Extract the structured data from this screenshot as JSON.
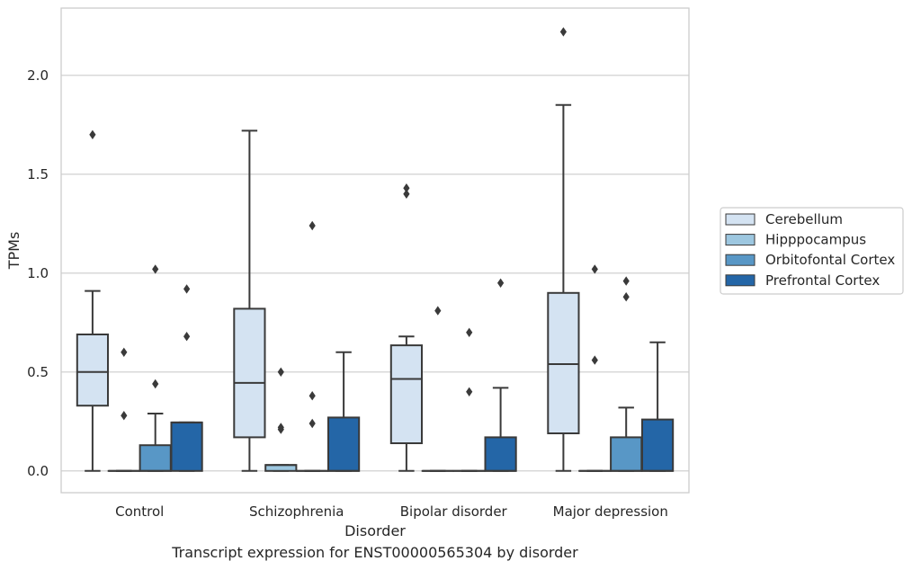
{
  "chart_data": {
    "type": "box",
    "title": "",
    "caption": "Transcript expression for ENST00000565304 by disorder",
    "xlabel": "Disorder",
    "ylabel": "TPMs",
    "ylim": [
      -0.11,
      2.34
    ],
    "yticks": [
      "0.0",
      "0.5",
      "1.0",
      "1.5",
      "2.0"
    ],
    "ytick_values": [
      0.0,
      0.5,
      1.0,
      1.5,
      2.0
    ],
    "grid": "horizontal",
    "legend_position": "right",
    "categories": [
      "Control",
      "Schizophrenia",
      "Bipolar disorder",
      "Major depression"
    ],
    "series": [
      {
        "name": "Cerebellum",
        "color": "#d4e3f2",
        "boxes": [
          {
            "min": 0.0,
            "q1": 0.33,
            "median": 0.5,
            "q3": 0.69,
            "max": 0.91,
            "outliers": [
              1.7
            ]
          },
          {
            "min": 0.0,
            "q1": 0.17,
            "median": 0.445,
            "q3": 0.82,
            "max": 1.72,
            "outliers": []
          },
          {
            "min": 0.0,
            "q1": 0.14,
            "median": 0.465,
            "q3": 0.635,
            "max": 0.68,
            "outliers": [
              1.4,
              1.43
            ]
          },
          {
            "min": 0.0,
            "q1": 0.19,
            "median": 0.54,
            "q3": 0.9,
            "max": 1.85,
            "outliers": [
              2.22
            ]
          }
        ]
      },
      {
        "name": "Hipppocampus",
        "color": "#9dc7e0",
        "boxes": [
          {
            "min": 0.0,
            "q1": 0.0,
            "median": 0.0,
            "q3": 0.0,
            "max": 0.0,
            "outliers": [
              0.28,
              0.6
            ]
          },
          {
            "min": 0.0,
            "q1": 0.0,
            "median": 0.03,
            "q3": 0.03,
            "max": 0.03,
            "outliers": [
              0.21,
              0.22,
              0.5
            ]
          },
          {
            "min": 0.0,
            "q1": 0.0,
            "median": 0.0,
            "q3": 0.0,
            "max": 0.0,
            "outliers": [
              0.81
            ]
          },
          {
            "min": 0.0,
            "q1": 0.0,
            "median": 0.0,
            "q3": 0.0,
            "max": 0.0,
            "outliers": [
              0.56,
              1.02
            ]
          }
        ]
      },
      {
        "name": "Orbitofontal Cortex",
        "color": "#5897c6",
        "boxes": [
          {
            "min": 0.0,
            "q1": 0.0,
            "median": 0.0,
            "q3": 0.13,
            "max": 0.29,
            "outliers": [
              0.44,
              1.02
            ]
          },
          {
            "min": 0.0,
            "q1": 0.0,
            "median": 0.0,
            "q3": 0.0,
            "max": 0.0,
            "outliers": [
              0.24,
              0.38,
              1.24
            ]
          },
          {
            "min": 0.0,
            "q1": 0.0,
            "median": 0.0,
            "q3": 0.0,
            "max": 0.0,
            "outliers": [
              0.4,
              0.7
            ]
          },
          {
            "min": 0.0,
            "q1": 0.0,
            "median": 0.0,
            "q3": 0.17,
            "max": 0.32,
            "outliers": [
              0.88,
              0.96
            ]
          }
        ]
      },
      {
        "name": "Prefrontal Cortex",
        "color": "#2466a7",
        "boxes": [
          {
            "min": 0.0,
            "q1": 0.0,
            "median": 0.245,
            "q3": 0.245,
            "max": 0.245,
            "outliers": [
              0.68,
              0.92
            ]
          },
          {
            "min": 0.0,
            "q1": 0.0,
            "median": 0.0,
            "q3": 0.27,
            "max": 0.6,
            "outliers": []
          },
          {
            "min": 0.0,
            "q1": 0.0,
            "median": 0.0,
            "q3": 0.17,
            "max": 0.42,
            "outliers": [
              0.95
            ]
          },
          {
            "min": 0.0,
            "q1": 0.0,
            "median": 0.0,
            "q3": 0.26,
            "max": 0.65,
            "outliers": []
          }
        ]
      }
    ]
  }
}
